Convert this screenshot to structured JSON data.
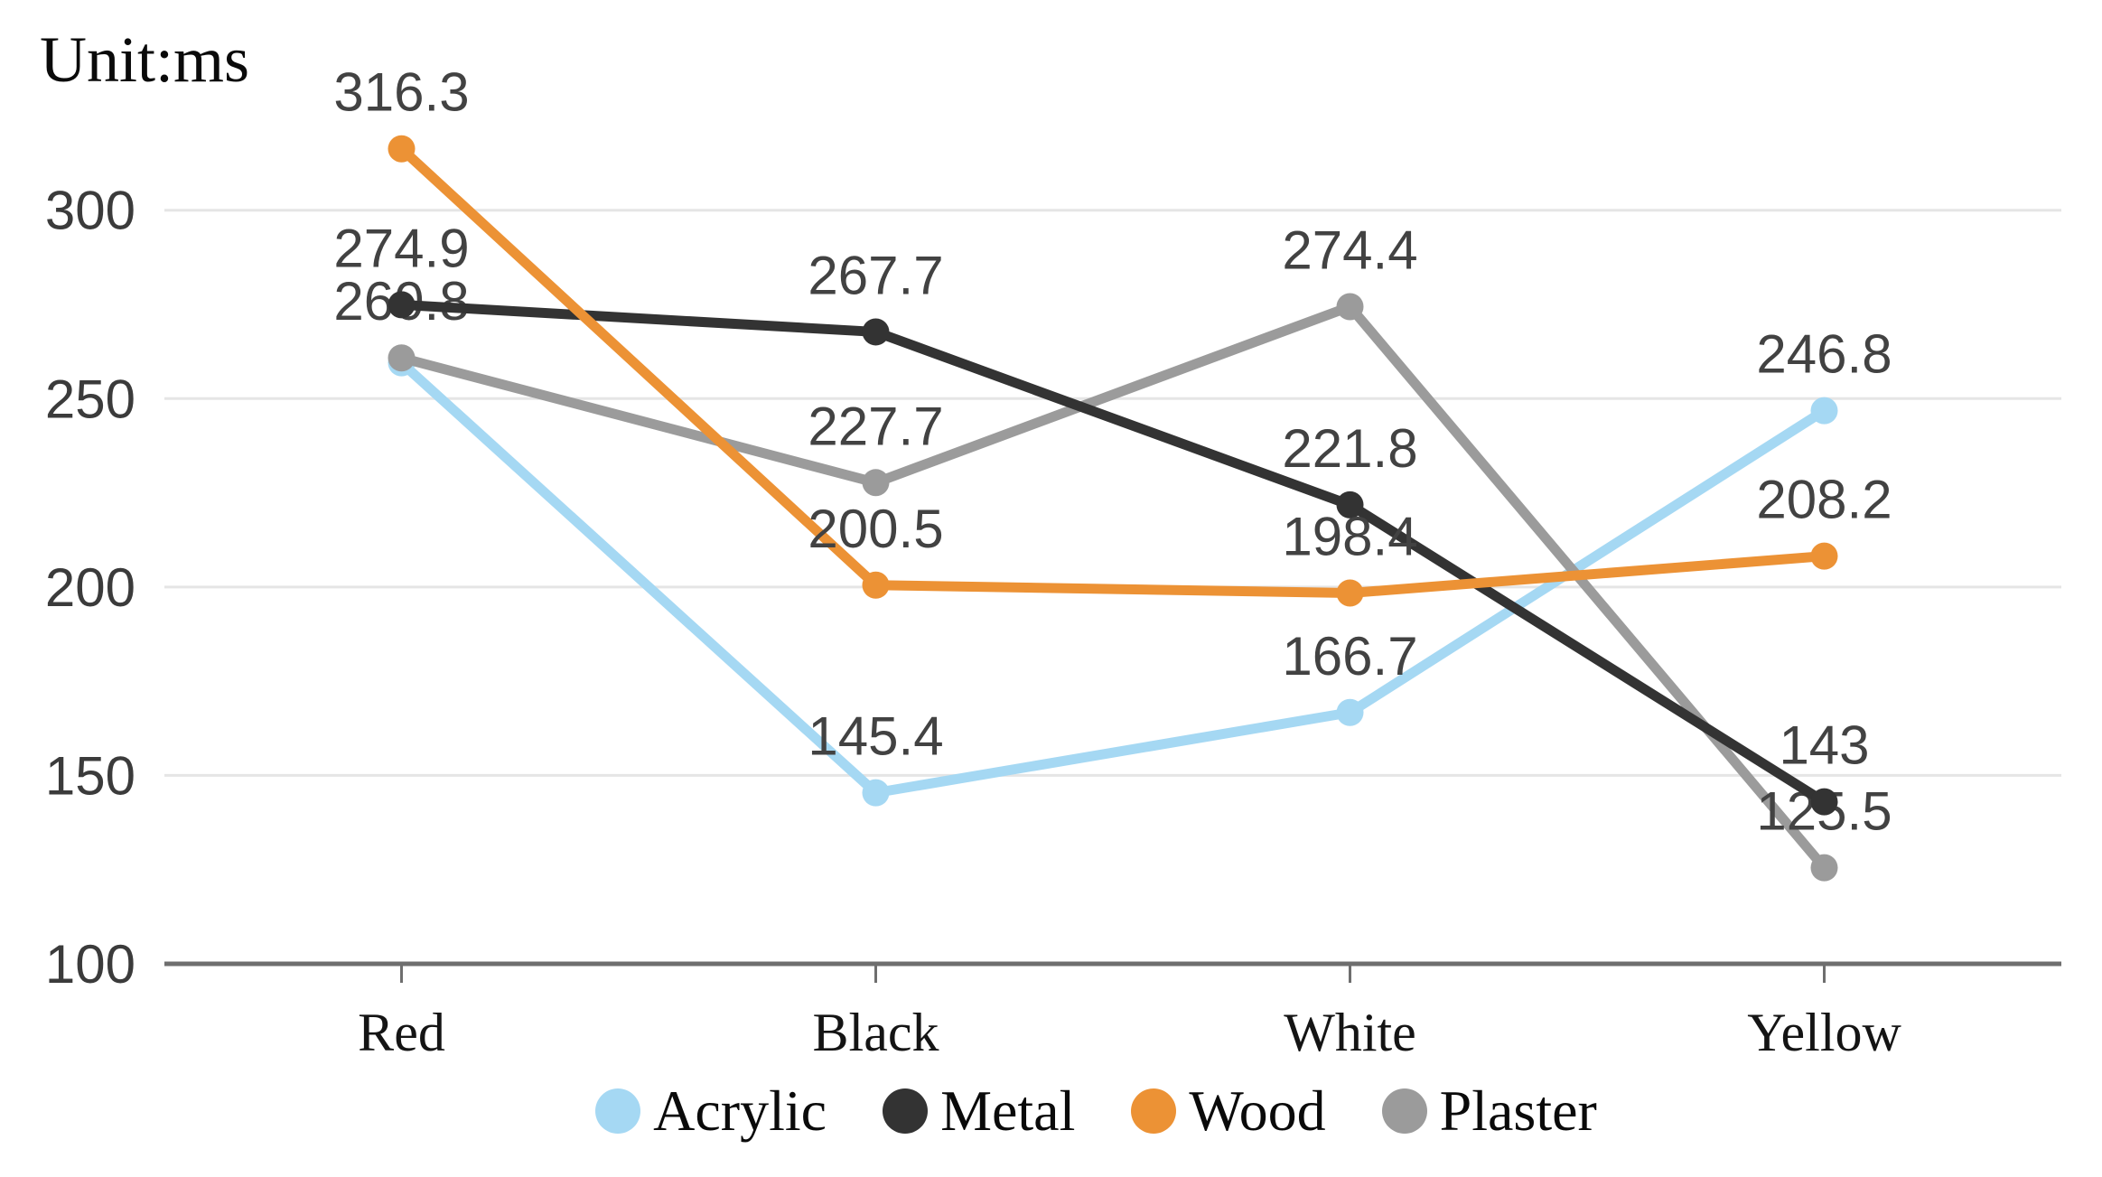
{
  "title": {
    "unit_label": "Unit:ms"
  },
  "chart_data": {
    "type": "line",
    "categories": [
      "Red",
      "Black",
      "White",
      "Yellow"
    ],
    "series": [
      {
        "name": "Acrylic",
        "color": "#A5D8F3",
        "values": [
          259.5,
          145.4,
          166.7,
          246.8
        ],
        "labels": [
          null,
          "145.4",
          "166.7",
          "246.8"
        ]
      },
      {
        "name": "Plaster",
        "color": "#9B9B9B",
        "values": [
          260.8,
          227.7,
          274.4,
          125.5
        ],
        "labels": [
          "260.8",
          "227.7",
          "274.4",
          "125.5"
        ]
      },
      {
        "name": "Metal",
        "color": "#333333",
        "values": [
          274.9,
          267.7,
          221.8,
          143
        ],
        "labels": [
          "274.9",
          "267.7",
          "221.8",
          "143"
        ]
      },
      {
        "name": "Wood",
        "color": "#EC9235",
        "values": [
          316.3,
          200.5,
          198.4,
          208.2
        ],
        "labels": [
          "316.3",
          "200.5",
          "198.4",
          "208.2"
        ]
      }
    ],
    "legend": [
      "Acrylic",
      "Metal",
      "Wood",
      "Plaster"
    ],
    "y_axis": {
      "min": 100,
      "ticks": [
        100,
        150,
        200,
        250,
        300
      ],
      "ylim": [
        100,
        330
      ]
    },
    "x_axis": {
      "label": ""
    },
    "grid": true,
    "legend_position": "bottom"
  }
}
